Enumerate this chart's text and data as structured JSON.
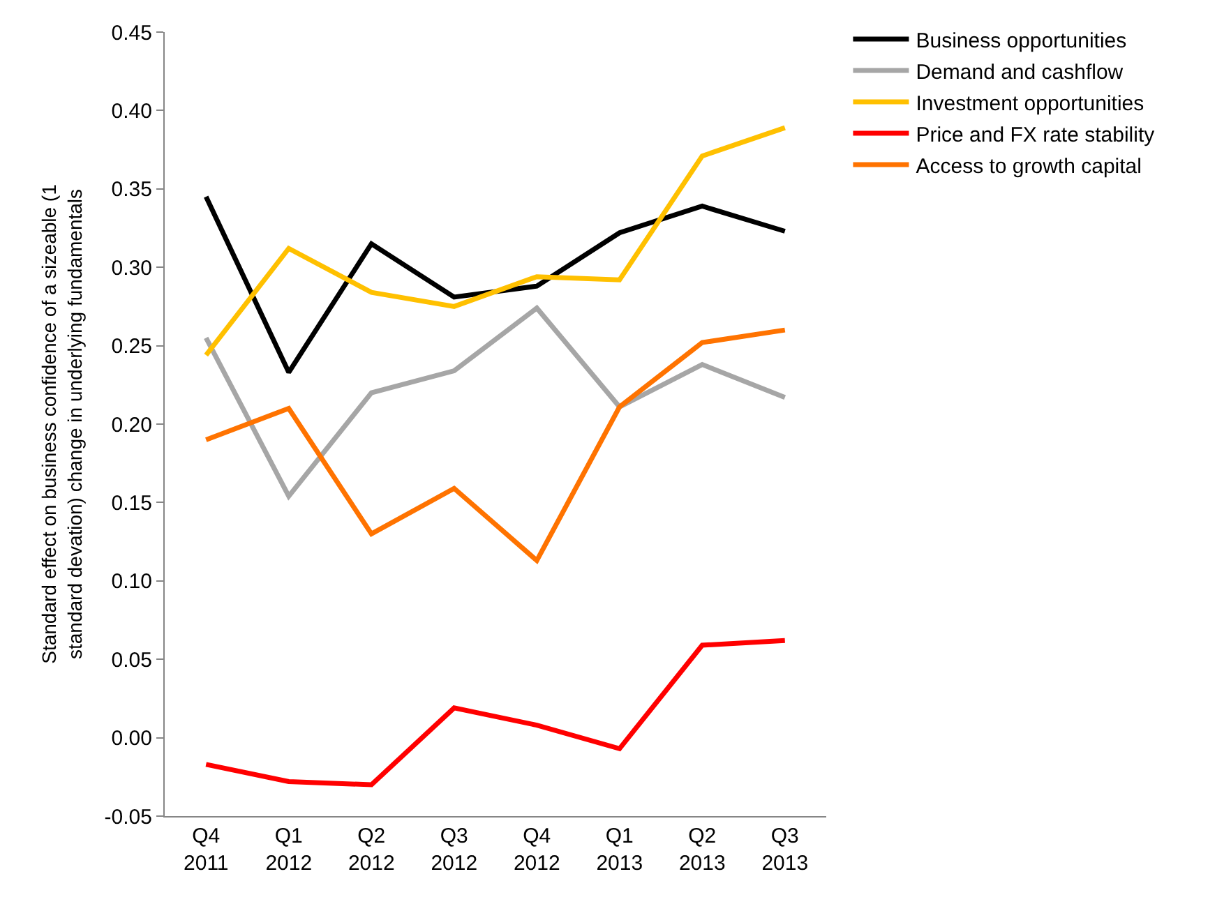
{
  "chart_data": {
    "type": "line",
    "ylabel": "Standard effect on business confidence of a sizeable (1 standard devation) change in underlying fundamentals",
    "categories": [
      "Q4 2011",
      "Q1 2012",
      "Q2 2012",
      "Q3 2012",
      "Q4 2012",
      "Q1 2013",
      "Q2 2013",
      "Q3 2013"
    ],
    "series": [
      {
        "name": "Business opportunities",
        "color": "#000000",
        "values": [
          0.345,
          0.233,
          0.315,
          0.281,
          0.288,
          0.322,
          0.339,
          0.323
        ]
      },
      {
        "name": "Demand and cashflow",
        "color": "#a6a6a6",
        "values": [
          0.255,
          0.154,
          0.22,
          0.234,
          0.274,
          0.211,
          0.238,
          0.217
        ]
      },
      {
        "name": "Investment opportunities",
        "color": "#ffc000",
        "values": [
          0.244,
          0.312,
          0.284,
          0.275,
          0.294,
          0.292,
          0.371,
          0.389
        ]
      },
      {
        "name": "Price and FX rate stability",
        "color": "#ff0000",
        "values": [
          -0.017,
          -0.028,
          -0.03,
          0.019,
          0.008,
          -0.007,
          0.059,
          0.062
        ]
      },
      {
        "name": "Access to growth capital",
        "color": "#ff7300",
        "values": [
          0.19,
          0.21,
          0.13,
          0.159,
          0.113,
          0.211,
          0.252,
          0.26
        ]
      }
    ],
    "ylim": [
      -0.05,
      0.45
    ],
    "yticks": [
      {
        "value": -0.05,
        "label": "-0.05"
      },
      {
        "value": 0,
        "label": "0.00"
      },
      {
        "value": 0.05,
        "label": "0.05"
      },
      {
        "value": 0.1,
        "label": "0.10"
      },
      {
        "value": 0.15,
        "label": "0.15"
      },
      {
        "value": 0.2,
        "label": "0.20"
      },
      {
        "value": 0.25,
        "label": "0.25"
      },
      {
        "value": 0.3,
        "label": "0.30"
      },
      {
        "value": 0.35,
        "label": "0.35"
      },
      {
        "value": 0.4,
        "label": "0.40"
      },
      {
        "value": 0.45,
        "label": "0.45"
      }
    ],
    "grid": false,
    "legend": "top right",
    "marker": "none",
    "line_style": "solid"
  }
}
